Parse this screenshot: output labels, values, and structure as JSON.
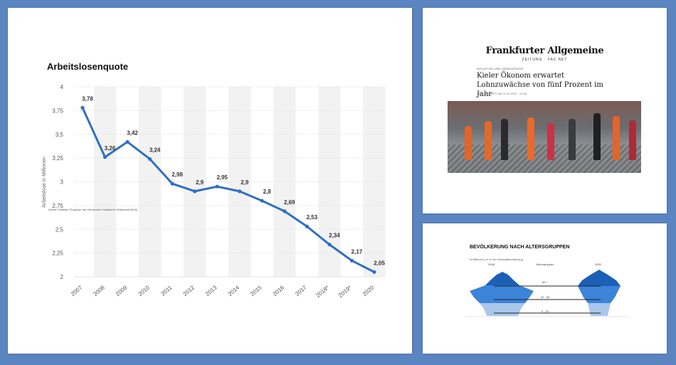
{
  "chart_data": {
    "type": "line",
    "title": "Arbeitslosenquote",
    "ylabel": "Arbeitslose in Millionen",
    "source": "Quelle: Statista; Prognose des Deutschen Instituts für Wirtschaft (DIW)",
    "categories": [
      "2007",
      "2008",
      "2009",
      "2010",
      "2011",
      "2012",
      "2013",
      "2014",
      "2015",
      "2016",
      "2017",
      "2018*",
      "2019*",
      "2020"
    ],
    "values": [
      3.78,
      3.26,
      3.42,
      3.24,
      2.98,
      2.9,
      2.95,
      2.9,
      2.8,
      2.69,
      2.53,
      2.34,
      2.17,
      2.05
    ],
    "value_labels": [
      "3,78",
      "3,26",
      "3,42",
      "3,24",
      "2,98",
      "2,9",
      "2,95",
      "2,9",
      "2,8",
      "2,69",
      "2,53",
      "2,34",
      "2,17",
      "2,05"
    ],
    "ylim": [
      2,
      4
    ],
    "yticks": [
      4,
      3.75,
      3.5,
      3.25,
      3,
      2.75,
      2.5,
      2.25,
      2
    ],
    "ytick_labels": [
      "4",
      "3,75",
      "3,5",
      "3,25",
      "3",
      "2,75",
      "2,5",
      "2,25",
      "2"
    ],
    "line_color": "#2f6fc4",
    "grid": true,
    "alternating_column_bands": true
  },
  "article": {
    "logo": "Frankfurter Allgemeine",
    "logo_sub": "ZEITUNG · FAZ.NET",
    "kicker": "INFLATION UND DEMOGRAFIE",
    "headline": "Kieler Ökonom erwartet Lohnzuwächse von fünf Prozent im Jahr",
    "meta": "AKTUALISIERT AM 21.03.2023 · 12:38"
  },
  "pyramid": {
    "title": "BEVÖLKERUNG NACH ALTERSGRUPPEN",
    "subtitle": "in Millionen | in % der Gesamtbevölkerung",
    "year_left": "2008",
    "year_right": "2030",
    "groups_label": "Altersgruppen",
    "age_groups": [
      "65 +",
      "20 - 65",
      "0 - 20"
    ],
    "colors": {
      "dark": "#1b5fb8",
      "mid": "#3b84d8",
      "light": "#a9c7ea"
    }
  }
}
